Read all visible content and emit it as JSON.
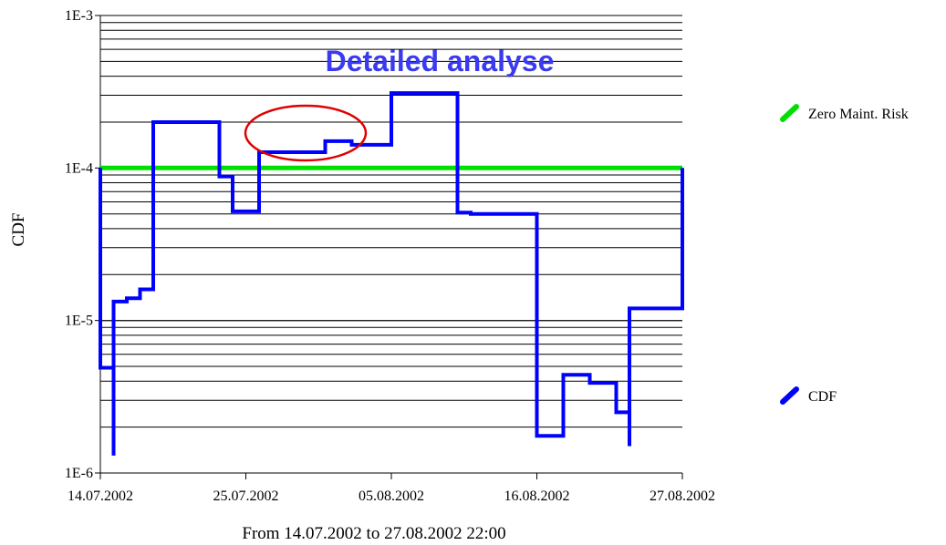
{
  "chart_data": {
    "type": "line",
    "title": "",
    "xlabel": "From 14.07.2002 to 27.08.2002 22:00",
    "ylabel": "CDF",
    "yscale": "log",
    "ylim": [
      1e-06,
      0.001
    ],
    "xlim": [
      "14.07.2002",
      "27.08.2002"
    ],
    "grid": "horizontal minor log gridlines on",
    "x_ticks": [
      "14.07.2002",
      "25.07.2002",
      "05.08.2002",
      "16.08.2002",
      "27.08.2002"
    ],
    "y_ticks": [
      "1E-6",
      "1E-5",
      "1E-4",
      "1E-3"
    ],
    "legend_position": "right",
    "colors": {
      "cdf": "#0000ff",
      "zero_risk": "#00e000",
      "annotation": "#3a3af0",
      "highlight": "#e00000"
    },
    "annotation": {
      "text": "Detailed analyse",
      "highlight": "red ellipse around CDF rise from 22.07.2002 to 06.08.2002"
    },
    "series": [
      {
        "name": "Zero Maint. Risk",
        "x": [
          "14.07.2002",
          "27.08.2002"
        ],
        "y": [
          0.0001,
          0.0001
        ]
      },
      {
        "name": "CDF",
        "x": [
          "14.07.2002",
          "14.07.2002",
          "14.07.2002",
          "15.07.2002",
          "15.07.2002",
          "15.07.2002",
          "15.07.2002",
          "15.07.2002",
          "15.07.2002",
          "16.07.2002",
          "16.07.2002",
          "17.07.2002",
          "17.07.2002",
          "18.07.2002",
          "18.07.2002",
          "23.07.2002",
          "23.07.2002",
          "24.07.2002",
          "24.07.2002",
          "26.07.2002",
          "26.07.2002",
          "31.07.2002",
          "31.07.2002",
          "02.08.2002",
          "02.08.2002",
          "05.08.2002",
          "05.08.2002",
          "10.08.2002",
          "10.08.2002",
          "10.08.2002",
          "10.08.2002",
          "11.08.2002",
          "11.08.2002",
          "16.08.2002",
          "16.08.2002",
          "18.08.2002",
          "18.08.2002",
          "20.08.2002",
          "20.08.2002",
          "22.08.2002",
          "22.08.2002",
          "23.08.2002",
          "23.08.2002",
          "23.08.2002",
          "23.08.2002",
          "27.08.2002",
          "27.08.2002"
        ],
        "y": [
          0.0001,
          0.0001,
          4.9e-06,
          4.9e-06,
          1.3e-06,
          1.3e-06,
          1.2e-05,
          1.2e-05,
          1.33e-05,
          1.33e-05,
          1.4e-05,
          1.4e-05,
          1.6e-05,
          1.6e-05,
          0.0002,
          0.0002,
          8.8e-05,
          8.8e-05,
          5.2e-05,
          5.2e-05,
          0.000127,
          0.000127,
          0.00015,
          0.00015,
          0.000142,
          0.000142,
          0.00031,
          0.00031,
          6.5e-05,
          6.5e-05,
          5.1e-05,
          5.1e-05,
          5e-05,
          5e-05,
          1.75e-06,
          1.75e-06,
          4.4e-06,
          4.4e-06,
          3.9e-06,
          3.9e-06,
          2.5e-06,
          2.5e-06,
          1.5e-06,
          1.5e-06,
          1.2e-05,
          1.2e-05,
          0.0001
        ]
      }
    ]
  }
}
